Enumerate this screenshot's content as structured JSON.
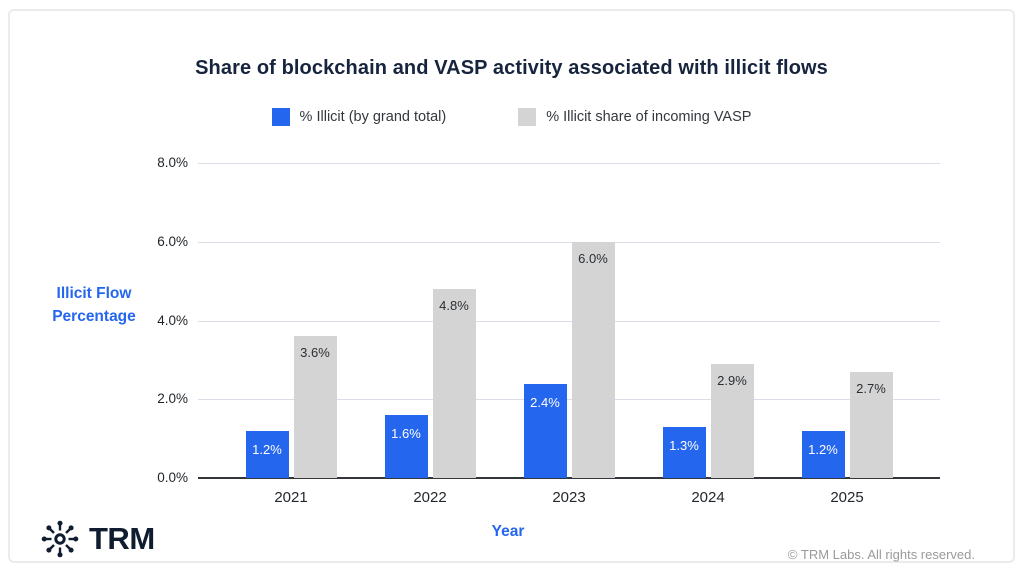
{
  "chart_data": {
    "type": "bar",
    "title": "Share of blockchain and VASP activity associated with illicit flows",
    "categories": [
      "2021",
      "2022",
      "2023",
      "2024",
      "2025"
    ],
    "series": [
      {
        "name": "% Illicit (by grand total)",
        "color": "#2566ef",
        "values": [
          1.2,
          1.6,
          2.4,
          1.3,
          1.2
        ],
        "data_labels": [
          "1.2%",
          "1.6%",
          "2.4%",
          "1.3%",
          "1.2%"
        ],
        "label_color": "#ffffff"
      },
      {
        "name": "% Illicit share of incoming VASP",
        "color": "#d4d4d4",
        "values": [
          3.6,
          4.8,
          6.0,
          2.9,
          2.7
        ],
        "data_labels": [
          "3.6%",
          "4.8%",
          "6.0%",
          "2.9%",
          "2.7%"
        ],
        "label_color": "#2b2f34"
      }
    ],
    "xlabel": "Year",
    "ylabel": "Illicit Flow Percentage",
    "ylim": [
      0,
      8
    ],
    "yticks": [
      {
        "value": 0,
        "label": "0.0%"
      },
      {
        "value": 2,
        "label": "2.0%"
      },
      {
        "value": 4,
        "label": "4.0%"
      },
      {
        "value": 6,
        "label": "6.0%"
      },
      {
        "value": 8,
        "label": "8.0%"
      }
    ],
    "grid": true,
    "legend_position": "top"
  },
  "footer": {
    "logo_text": "TRM",
    "logo_icon": "trm-network-asterisk-icon",
    "copyright": "© TRM Labs. All rights reserved."
  },
  "colors": {
    "accent_blue": "#2566ef",
    "bar_gray": "#d4d4d4",
    "gridline": "#d9dee9",
    "axis": "#33363a",
    "title_navy": "#16243d",
    "copyright_gray": "#9a9a9a"
  }
}
